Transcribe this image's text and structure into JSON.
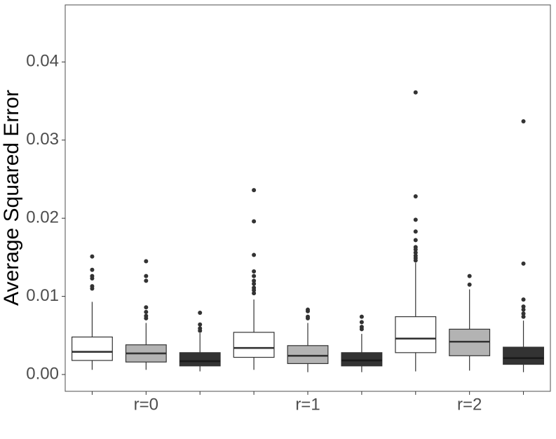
{
  "chart_data": {
    "type": "boxplot",
    "y_label": "Average Squared Error",
    "categories": [
      "r=0",
      "r=1",
      "r=2"
    ],
    "ylim": [
      -0.00215,
      0.0473
    ],
    "yticks": [
      {
        "value": 0,
        "label": "0.00"
      },
      0.01,
      0.02,
      0.03,
      0.04
    ],
    "grid": false,
    "series": [
      {
        "color": "#ffffff",
        "values": [
          {
            "min": 0.0006,
            "q1": 0.0018,
            "median": 0.0029,
            "q3": 0.0048,
            "max": 0.0093,
            "outliers": [
              0.0151,
              0.0134,
              0.0126,
              0.0123,
              0.0113,
              0.011
            ]
          },
          {
            "min": 0.0006,
            "q1": 0.0022,
            "median": 0.0034,
            "q3": 0.0054,
            "max": 0.0096,
            "outliers": [
              0.0236,
              0.0196,
              0.0153,
              0.0132,
              0.0126,
              0.012,
              0.0116,
              0.0111,
              0.0108,
              0.0104
            ]
          },
          {
            "min": 0.0004,
            "q1": 0.0028,
            "median": 0.0046,
            "q3": 0.0074,
            "max": 0.0143,
            "outliers": [
              0.0361,
              0.0228,
              0.0198,
              0.0183,
              0.0172,
              0.0163,
              0.016,
              0.0156,
              0.0152,
              0.0149,
              0.0146
            ]
          }
        ]
      },
      {
        "color": "#b3b3b3",
        "values": [
          {
            "min": 0.0006,
            "q1": 0.0016,
            "median": 0.0027,
            "q3": 0.0038,
            "max": 0.0066,
            "outliers": [
              0.0145,
              0.0126,
              0.012,
              0.0086,
              0.008,
              0.0075,
              0.0072
            ]
          },
          {
            "min": 0.0003,
            "q1": 0.0014,
            "median": 0.0024,
            "q3": 0.0037,
            "max": 0.0066,
            "outliers": [
              0.0083,
              0.0081,
              0.0074,
              0.0072
            ]
          },
          {
            "min": 0.0005,
            "q1": 0.0024,
            "median": 0.0042,
            "q3": 0.0058,
            "max": 0.0109,
            "outliers": [
              0.0126,
              0.0115
            ]
          }
        ]
      },
      {
        "color": "#333333",
        "values": [
          {
            "min": 0.0004,
            "q1": 0.0011,
            "median": 0.0017,
            "q3": 0.0028,
            "max": 0.0053,
            "outliers": [
              0.0079,
              0.0064,
              0.0059,
              0.0056
            ]
          },
          {
            "min": 0.0003,
            "q1": 0.0011,
            "median": 0.0018,
            "q3": 0.0028,
            "max": 0.0052,
            "outliers": [
              0.0074,
              0.0067,
              0.0061,
              0.0058
            ]
          },
          {
            "min": 0.0003,
            "q1": 0.0013,
            "median": 0.0021,
            "q3": 0.0035,
            "max": 0.0069,
            "outliers": [
              0.0324,
              0.0142,
              0.0096,
              0.0087,
              0.0083,
              0.0078,
              0.0074
            ]
          }
        ]
      }
    ]
  }
}
